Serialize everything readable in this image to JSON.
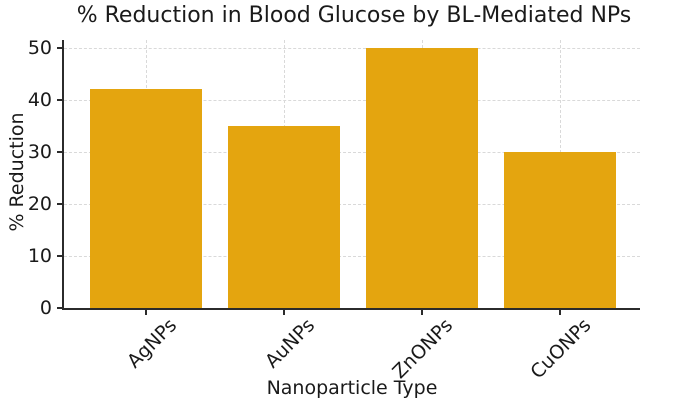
{
  "chart_data": {
    "type": "bar",
    "title": "% Reduction in Blood Glucose by BL-Mediated NPs",
    "xlabel": "Nanoparticle Type",
    "ylabel": "% Reduction",
    "categories": [
      "AgNPs",
      "AuNPs",
      "ZnONPs",
      "CuONPs"
    ],
    "values": [
      42,
      35,
      50,
      30
    ],
    "yticks": [
      0,
      10,
      20,
      30,
      40,
      50
    ],
    "ylim": [
      0,
      51.5
    ],
    "grid": {
      "style": "dashed",
      "axes": "both",
      "color": "#d9d9d9"
    },
    "legend_position": "none",
    "colors": {
      "bar": "#E4A50F",
      "spine": "#2b2b2b",
      "text": "#1a1a1a",
      "background": "#ffffff"
    }
  }
}
